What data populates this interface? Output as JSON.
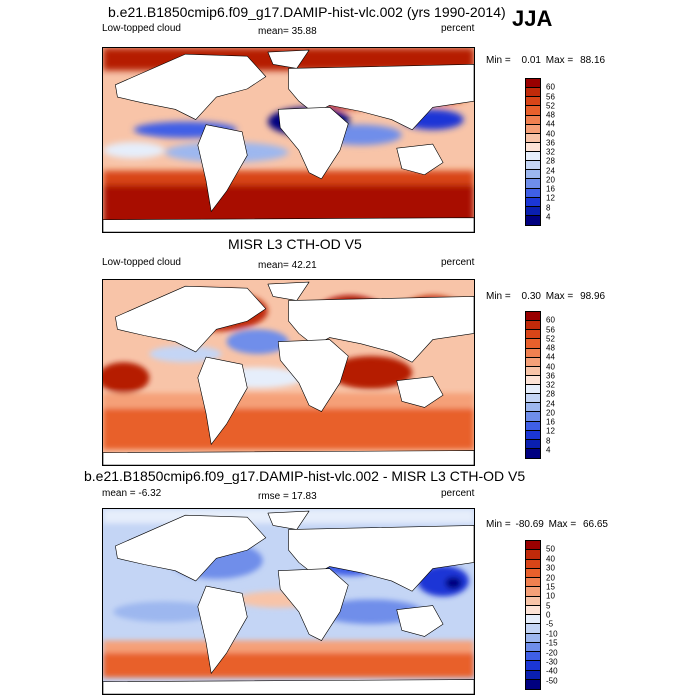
{
  "season": "JJA",
  "panels": [
    {
      "title": "b.e21.B1850cmip6.f09_g17.DAMIP-hist-vlc.002 (yrs 1990-2014)",
      "left_label": "Low-topped cloud",
      "center_label": "mean=  35.88",
      "right_label": "percent",
      "min_label": "Min =",
      "min_value": "0.01",
      "max_label": "Max =",
      "max_value": "88.16",
      "colorbar_labels": [
        "60",
        "56",
        "52",
        "48",
        "44",
        "40",
        "36",
        "32",
        "28",
        "24",
        "20",
        "16",
        "12",
        "8",
        "4"
      ]
    },
    {
      "title": "MISR L3 CTH-OD V5",
      "left_label": "Low-topped cloud",
      "center_label": "mean=  42.21",
      "right_label": "percent",
      "min_label": "Min =",
      "min_value": "0.30",
      "max_label": "Max =",
      "max_value": "98.96",
      "colorbar_labels": [
        "60",
        "56",
        "52",
        "48",
        "44",
        "40",
        "36",
        "32",
        "28",
        "24",
        "20",
        "16",
        "12",
        "8",
        "4"
      ]
    },
    {
      "title": "b.e21.B1850cmip6.f09_g17.DAMIP-hist-vlc.002 - MISR L3 CTH-OD V5",
      "left_label": "mean =  -6.32",
      "center_label": "rmse =  17.83",
      "right_label": "percent",
      "min_label": "Min =",
      "min_value": "-80.69",
      "max_label": "Max =",
      "max_value": "66.65",
      "colorbar_labels": [
        "50",
        "40",
        "30",
        "20",
        "15",
        "10",
        "5",
        "0",
        "-5",
        "-10",
        "-15",
        "-20",
        "-30",
        "-40",
        "-50"
      ]
    }
  ],
  "colors": {
    "abs_scale": [
      "#990000",
      "#c02a0a",
      "#d84518",
      "#e8602c",
      "#f08050",
      "#f5a078",
      "#f8c4a8",
      "#fde3d6",
      "#e6eefb",
      "#c4d5f5",
      "#9db7ef",
      "#6f8eea",
      "#3f5fe6",
      "#1b36d6",
      "#0a1fb0",
      "#000080"
    ],
    "diff_scale": [
      "#990000",
      "#c02a0a",
      "#d84518",
      "#e8602c",
      "#f08050",
      "#f5a078",
      "#f8c4a8",
      "#fde3d6",
      "#e6eefb",
      "#c4d5f5",
      "#9db7ef",
      "#6f8eea",
      "#3f5fe6",
      "#1b36d6",
      "#0a1fb0",
      "#000080"
    ],
    "land": "#ffffff",
    "coast": "#000000"
  }
}
